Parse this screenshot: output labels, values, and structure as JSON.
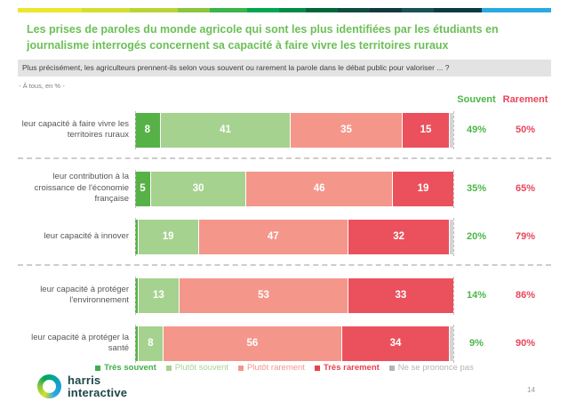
{
  "title": "Les prises de paroles du monde agricole qui sont les plus identifiées par les étudiants en journalisme interrogés concernent sa capacité à faire vivre les territoires ruraux",
  "question": "Plus précisément, les agriculteurs prennent-ils selon vous souvent ou rarement la parole dans le débat public pour valoriser ... ?",
  "base_note": "- À tous, en % -",
  "columns": {
    "souvent": "Souvent",
    "rarement": "Rarement"
  },
  "chart_data": {
    "type": "bar",
    "stacked": true,
    "orientation": "horizontal",
    "x_range": [
      0,
      100
    ],
    "series_labels": [
      "Très souvent",
      "Plutôt souvent",
      "Plutôt rarement",
      "Très rarement",
      "Ne se prononce pas"
    ],
    "series_colors": [
      "#56b247",
      "#a6d290",
      "#f5968b",
      "#ea515c",
      "#d4d4d4"
    ],
    "label_min_value": 5,
    "rows": [
      {
        "label": "leur capacité à faire vivre les territoires ruraux",
        "values": [
          8,
          41,
          35,
          15,
          1
        ],
        "souvent": "49%",
        "rarement": "50%",
        "divider_after": true
      },
      {
        "label": "leur contribution à la croissance de l'économie française",
        "values": [
          5,
          30,
          46,
          19,
          0
        ],
        "souvent": "35%",
        "rarement": "65%",
        "divider_after": false
      },
      {
        "label": "leur capacité à innover",
        "values": [
          1,
          19,
          47,
          32,
          1
        ],
        "souvent": "20%",
        "rarement": "79%",
        "divider_after": true
      },
      {
        "label": "leur capacité à protéger l'environnement",
        "values": [
          1,
          13,
          53,
          33,
          0
        ],
        "souvent": "14%",
        "rarement": "86%",
        "divider_after": false
      },
      {
        "label": "leur capacité à protéger la santé",
        "values": [
          1,
          8,
          56,
          34,
          1
        ],
        "souvent": "9%",
        "rarement": "90%",
        "divider_after": false
      }
    ]
  },
  "legend": [
    {
      "label": "Très souvent",
      "color": "#3fae49",
      "bold": true
    },
    {
      "label": "Plutôt souvent",
      "color": "#a6d290",
      "bold": false
    },
    {
      "label": "Plutôt rarement",
      "color": "#f5968b",
      "bold": false
    },
    {
      "label": "Très rarement",
      "color": "#e8414d",
      "bold": true
    },
    {
      "label": "Ne se prononce pas",
      "color": "#b5b5b5",
      "bold": false
    }
  ],
  "logo": {
    "line1": "harris",
    "line2": "interactive"
  },
  "page_number": "14"
}
